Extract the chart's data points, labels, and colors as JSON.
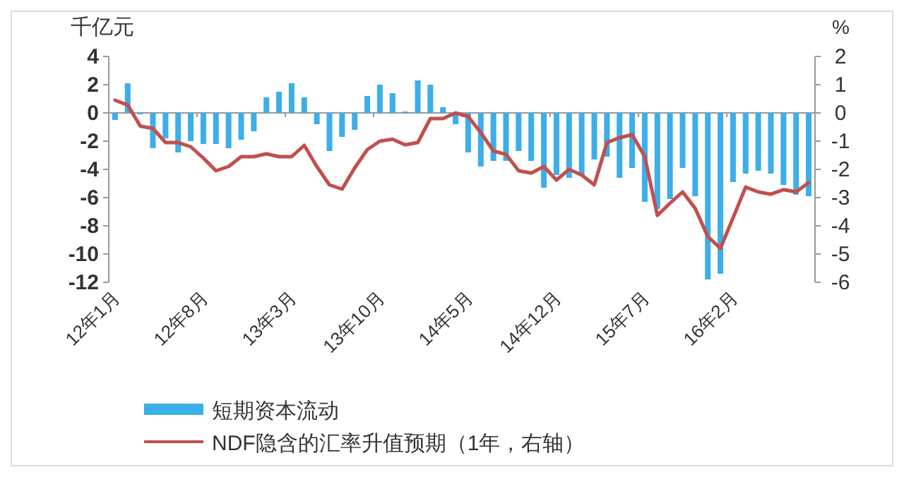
{
  "chart_data": {
    "type": "bar",
    "ylabel": "千亿元",
    "y2label": "%",
    "categories": [
      "12年1月",
      null,
      null,
      null,
      null,
      null,
      null,
      "12年8月",
      null,
      null,
      null,
      null,
      null,
      null,
      "13年3月",
      null,
      null,
      null,
      null,
      null,
      null,
      "13年10月",
      null,
      null,
      null,
      null,
      null,
      null,
      "14年5月",
      null,
      null,
      null,
      null,
      null,
      null,
      "14年12月",
      null,
      null,
      null,
      null,
      null,
      null,
      "15年7月",
      null,
      null,
      null,
      null,
      null,
      null,
      "16年2月",
      null,
      null,
      null,
      null,
      null,
      null
    ],
    "series": [
      {
        "name": "短期资本流动",
        "color": "#3daee9",
        "values": [
          -0.5,
          2.1,
          -0.1,
          -2.5,
          -1.8,
          -2.8,
          -2.0,
          -2.2,
          -2.2,
          -2.5,
          -1.9,
          -1.3,
          1.1,
          1.5,
          2.1,
          1.1,
          -0.8,
          -2.7,
          -1.7,
          -1.2,
          1.2,
          2.0,
          1.4,
          0.1,
          2.3,
          2.0,
          0.4,
          -0.8,
          -2.8,
          -3.8,
          -3.4,
          -3.4,
          -2.7,
          -3.4,
          -5.3,
          -4.4,
          -4.6,
          -4.4,
          -3.3,
          -3.1,
          -4.6,
          -3.9,
          -6.3,
          -6.8,
          -6.1,
          -3.9,
          -5.9,
          -11.8,
          -11.4,
          -4.9,
          -4.3,
          -4.1,
          -4.3,
          -5.1,
          -5.8,
          -5.9
        ]
      },
      {
        "name": "NDF隐含的汇率升值预期（1年，右轴）",
        "type": "line",
        "axis": "y2",
        "color": "#c0504d",
        "values": [
          0.45,
          0.28,
          -0.47,
          -0.55,
          -1.05,
          -1.05,
          -1.2,
          -1.6,
          -2.05,
          -1.9,
          -1.55,
          -1.55,
          -1.45,
          -1.55,
          -1.55,
          -1.15,
          -1.9,
          -2.55,
          -2.7,
          -1.95,
          -1.3,
          -1.0,
          -0.93,
          -1.13,
          -1.05,
          -0.2,
          -0.2,
          0.0,
          -0.13,
          -0.7,
          -1.35,
          -1.47,
          -2.05,
          -2.13,
          -1.9,
          -2.38,
          -2.0,
          -2.2,
          -2.55,
          -1.05,
          -0.88,
          -0.77,
          -1.55,
          -3.63,
          -3.2,
          -2.8,
          -3.38,
          -4.38,
          -4.8,
          -3.72,
          -2.63,
          -2.8,
          -2.88,
          -2.72,
          -2.8,
          -2.47
        ]
      }
    ],
    "ylim": [
      -12,
      4
    ],
    "yticks": [
      -12,
      -10,
      -8,
      -6,
      -4,
      -2,
      0,
      2,
      4
    ],
    "y2lim": [
      -6,
      2
    ],
    "y2ticks": [
      -6,
      -5,
      -4,
      -3,
      -2,
      -1,
      0,
      1,
      2
    ],
    "legend": "bottom"
  }
}
